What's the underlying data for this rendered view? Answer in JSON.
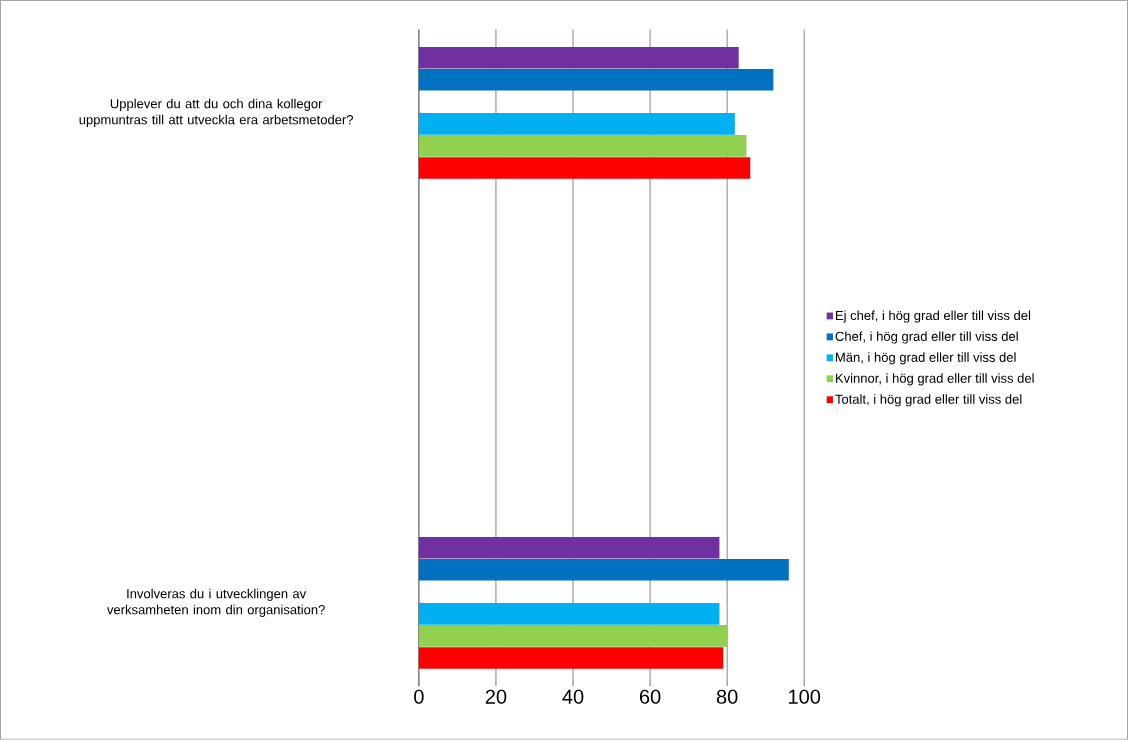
{
  "chart_data": {
    "type": "bar",
    "orientation": "horizontal",
    "categories": [
      "Upplever du att du och dina kollegor uppmuntras till att utveckla era arbetsmetoder?",
      "Involveras du i utvecklingen av verksamheten inom din organisation?"
    ],
    "series": [
      {
        "name": "Ej chef, i hög grad eller till viss del",
        "color": "#7030a0",
        "values": [
          83,
          78
        ]
      },
      {
        "name": "Chef, i hög grad eller till viss del",
        "color": "#0070c0",
        "values": [
          92,
          96
        ]
      },
      {
        "name": "Män, i hög grad eller till viss del",
        "color": "#00b0f0",
        "values": [
          82,
          78
        ]
      },
      {
        "name": "Kvinnor, i hög grad eller till viss del",
        "color": "#92d050",
        "values": [
          85,
          80
        ]
      },
      {
        "name": "Totalt, i hög grad eller till viss del",
        "color": "#ff0000",
        "values": [
          86,
          79
        ]
      }
    ],
    "xlim": [
      0,
      100
    ],
    "xticks": [
      0,
      20,
      40,
      60,
      80,
      100
    ],
    "grid": "x",
    "legend": "right"
  }
}
